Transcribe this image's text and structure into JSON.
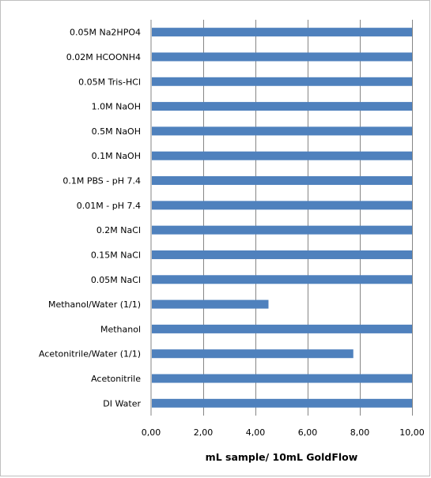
{
  "chart_data": {
    "type": "bar",
    "orientation": "horizontal",
    "categories": [
      "0.05M Na2HPO4",
      "0.02M HCOONH4",
      "0.05M Tris-HCl",
      "1.0M NaOH",
      "0.5M NaOH",
      "0.1M NaOH",
      "0.1M PBS - pH 7.4",
      "0.01M  - pH 7.4",
      "0.2M NaCl",
      "0.15M NaCl",
      "0.05M NaCl",
      "Methanol/Water (1/1)",
      "Methanol",
      "Acetonitrile/Water (1/1)",
      "Acetonitrile",
      "DI Water"
    ],
    "values": [
      10,
      10,
      10,
      10,
      10,
      10,
      10,
      10,
      10,
      10,
      10,
      4.5,
      10,
      7.75,
      10,
      10
    ],
    "xlabel": "mL sample/ 10mL GoldFlow",
    "ylabel": "",
    "title": "",
    "xlim": [
      0,
      10
    ],
    "xticks": [
      "0,00",
      "2,00",
      "4,00",
      "6,00",
      "8,00",
      "10,00"
    ],
    "grid": true,
    "bar_color": "#4f81bd",
    "grid_color": "#868686"
  }
}
